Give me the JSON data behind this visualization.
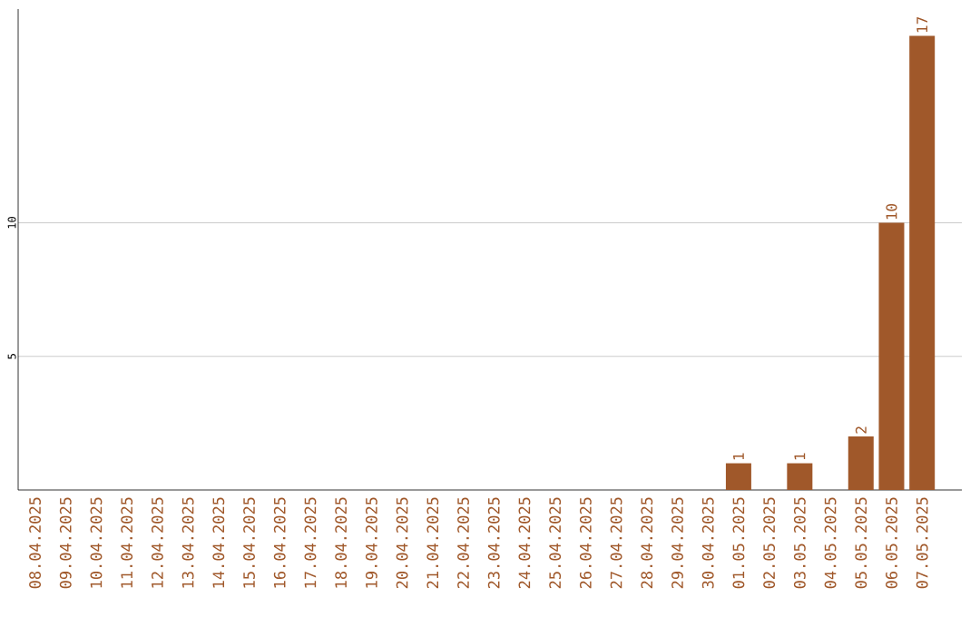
{
  "chart_data": {
    "type": "bar",
    "categories": [
      "08.04.2025",
      "09.04.2025",
      "10.04.2025",
      "11.04.2025",
      "12.04.2025",
      "13.04.2025",
      "14.04.2025",
      "15.04.2025",
      "16.04.2025",
      "17.04.2025",
      "18.04.2025",
      "19.04.2025",
      "20.04.2025",
      "21.04.2025",
      "22.04.2025",
      "23.04.2025",
      "24.04.2025",
      "25.04.2025",
      "26.04.2025",
      "27.04.2025",
      "28.04.2025",
      "29.04.2025",
      "30.04.2025",
      "01.05.2025",
      "02.05.2025",
      "03.05.2025",
      "04.05.2025",
      "05.05.2025",
      "06.05.2025",
      "07.05.2025"
    ],
    "values": [
      0,
      0,
      0,
      0,
      0,
      0,
      0,
      0,
      0,
      0,
      0,
      0,
      0,
      0,
      0,
      0,
      0,
      0,
      0,
      0,
      0,
      0,
      0,
      1,
      0,
      1,
      0,
      2,
      10,
      17
    ],
    "value_labels": [
      null,
      null,
      null,
      null,
      null,
      null,
      null,
      null,
      null,
      null,
      null,
      null,
      null,
      null,
      null,
      null,
      null,
      null,
      null,
      null,
      null,
      null,
      null,
      "1",
      null,
      "1",
      null,
      "2",
      "10",
      "17"
    ],
    "color": "#a0582a",
    "ylim": [
      0,
      18
    ],
    "yticks": [
      5,
      10
    ],
    "grid": "y"
  }
}
